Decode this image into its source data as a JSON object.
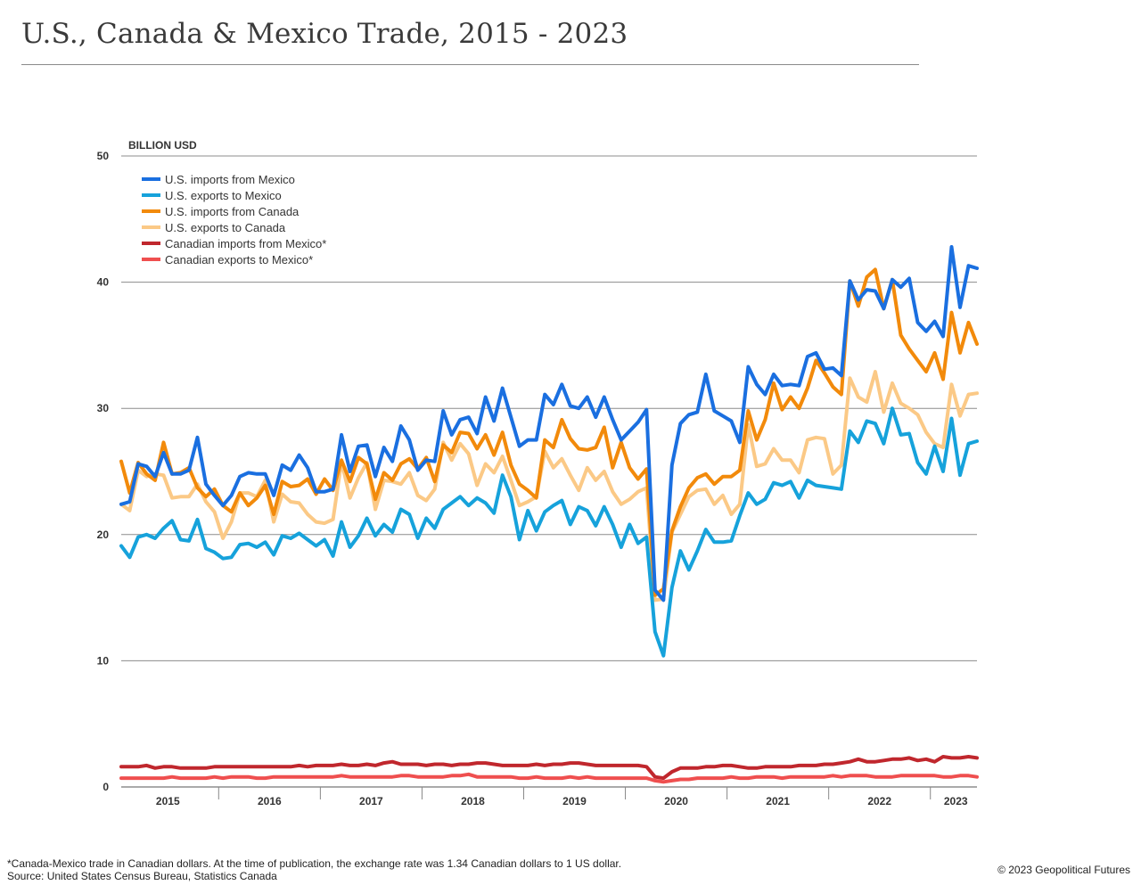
{
  "header": {
    "title": "U.S., Canada & Mexico Trade, 2015 - 2023"
  },
  "footer": {
    "footnote": "*Canada-Mexico trade in Canadian dollars. At the time of publication, the exchange rate was 1.34 Canadian dollars to 1 US dollar.",
    "source": "Source: United States Census Bureau, Statistics Canada",
    "copyright": "© 2023 Geopolitical Futures"
  },
  "chart_data": {
    "type": "line",
    "title": "U.S., Canada & Mexico Trade, 2015 - 2023",
    "ylabel": "BILLION USD",
    "xlabel": "",
    "ylim": [
      0,
      50
    ],
    "yticks": [
      0,
      10,
      20,
      30,
      40,
      50
    ],
    "x_start": "2015-01",
    "x_end": "2023-06",
    "year_labels": [
      "2015",
      "2016",
      "2017",
      "2018",
      "2019",
      "2020",
      "2021",
      "2022",
      "2023"
    ],
    "grid": true,
    "legend_position": "top-left",
    "series": [
      {
        "name": "U.S. imports from Mexico",
        "color": "#1a6fe0",
        "values": [
          22.4,
          22.6,
          25.6,
          25.4,
          24.6,
          26.5,
          24.8,
          24.8,
          25.1,
          27.7,
          24.0,
          23.1,
          22.3,
          23.1,
          24.6,
          24.9,
          24.8,
          24.8,
          23.1,
          25.5,
          25.1,
          26.3,
          25.3,
          23.4,
          23.4,
          23.6,
          27.9,
          25.0,
          27.0,
          27.1,
          24.6,
          26.9,
          25.8,
          28.6,
          27.5,
          25.1,
          25.9,
          25.8,
          29.8,
          27.9,
          29.1,
          29.3,
          28.0,
          30.9,
          29.0,
          31.6,
          29.3,
          27.0,
          27.5,
          27.5,
          31.1,
          30.3,
          31.9,
          30.2,
          30.0,
          30.9,
          29.3,
          30.9,
          29.1,
          27.5,
          28.2,
          28.9,
          29.9,
          15.6,
          14.8,
          25.5,
          28.8,
          29.5,
          29.7,
          32.7,
          29.8,
          29.4,
          29.0,
          27.3,
          33.3,
          31.9,
          31.1,
          32.7,
          31.8,
          31.9,
          31.8,
          34.1,
          34.4,
          33.1,
          33.2,
          32.6,
          40.1,
          38.6,
          39.4,
          39.3,
          37.9,
          40.2,
          39.6,
          40.3,
          36.8,
          36.1,
          36.9,
          35.7,
          42.8,
          38.0,
          41.3,
          41.1
        ]
      },
      {
        "name": "U.S. exports to Mexico",
        "color": "#16a2db",
        "values": [
          19.1,
          18.2,
          19.8,
          20.0,
          19.7,
          20.5,
          21.1,
          19.6,
          19.5,
          21.2,
          18.9,
          18.6,
          18.1,
          18.2,
          19.2,
          19.3,
          19.0,
          19.4,
          18.4,
          19.9,
          19.7,
          20.1,
          19.6,
          19.1,
          19.6,
          18.3,
          21.0,
          19.0,
          19.9,
          21.3,
          19.9,
          20.8,
          20.2,
          22.0,
          21.6,
          19.7,
          21.3,
          20.5,
          22.0,
          22.5,
          23.0,
          22.3,
          22.9,
          22.5,
          21.7,
          24.7,
          23.0,
          19.6,
          21.9,
          20.3,
          21.8,
          22.3,
          22.7,
          20.8,
          22.2,
          21.9,
          20.7,
          22.2,
          20.8,
          19.0,
          20.8,
          19.3,
          19.8,
          12.3,
          10.4,
          15.8,
          18.7,
          17.2,
          18.7,
          20.4,
          19.4,
          19.4,
          19.5,
          21.5,
          23.3,
          22.4,
          22.8,
          24.1,
          23.9,
          24.2,
          22.9,
          24.3,
          23.9,
          23.8,
          23.7,
          23.6,
          28.2,
          27.3,
          29.0,
          28.8,
          27.2,
          30.0,
          27.9,
          28.0,
          25.7,
          24.8,
          27.0,
          25.0,
          29.2,
          24.7,
          27.2,
          27.4
        ]
      },
      {
        "name": "U.S. imports from Canada",
        "color": "#f28a0b",
        "values": [
          25.8,
          23.3,
          25.7,
          24.8,
          24.3,
          27.3,
          24.8,
          24.9,
          25.3,
          23.7,
          23.0,
          23.6,
          22.3,
          21.8,
          23.3,
          22.3,
          22.9,
          23.9,
          21.6,
          24.2,
          23.8,
          23.9,
          24.4,
          23.2,
          24.4,
          23.5,
          25.9,
          24.2,
          26.1,
          25.6,
          22.8,
          24.9,
          24.3,
          25.6,
          26.0,
          25.2,
          26.1,
          24.2,
          27.1,
          26.5,
          28.1,
          28.0,
          26.8,
          27.9,
          26.3,
          28.1,
          25.5,
          24.0,
          23.5,
          22.9,
          27.5,
          26.9,
          29.1,
          27.6,
          26.8,
          26.7,
          26.9,
          28.5,
          25.3,
          27.3,
          25.3,
          24.4,
          25.2,
          15.2,
          15.7,
          20.3,
          22.2,
          23.7,
          24.5,
          24.8,
          24.0,
          24.6,
          24.6,
          25.1,
          29.8,
          27.5,
          29.1,
          32.0,
          29.9,
          30.9,
          30.0,
          31.6,
          33.8,
          32.8,
          31.7,
          31.1,
          40.1,
          38.1,
          40.4,
          41.0,
          37.9,
          40.2,
          35.8,
          34.7,
          33.8,
          32.9,
          34.4,
          32.3,
          37.6,
          34.4,
          36.8,
          35.1
        ]
      },
      {
        "name": "U.S. exports to Canada",
        "color": "#fbc986",
        "values": [
          22.4,
          21.9,
          25.1,
          24.6,
          24.8,
          24.7,
          22.9,
          23.0,
          23.0,
          24.0,
          22.6,
          21.8,
          19.7,
          21.0,
          23.3,
          23.3,
          23.0,
          24.3,
          21.0,
          23.2,
          22.6,
          22.5,
          21.6,
          21.0,
          20.9,
          21.2,
          25.8,
          22.9,
          24.5,
          25.7,
          22.0,
          24.3,
          24.2,
          24.0,
          24.9,
          23.1,
          22.7,
          23.6,
          27.3,
          25.9,
          27.2,
          26.4,
          23.9,
          25.6,
          24.9,
          26.2,
          24.3,
          22.3,
          22.6,
          23.0,
          26.6,
          25.3,
          26.0,
          24.7,
          23.5,
          25.3,
          24.3,
          25.0,
          23.4,
          22.4,
          22.8,
          23.4,
          23.7,
          14.8,
          14.9,
          20.2,
          21.6,
          23.0,
          23.5,
          23.6,
          22.4,
          23.1,
          21.6,
          22.4,
          28.7,
          25.4,
          25.6,
          26.8,
          25.9,
          25.9,
          24.9,
          27.5,
          27.7,
          27.6,
          24.8,
          25.5,
          32.4,
          30.9,
          30.5,
          32.9,
          29.7,
          32.0,
          30.4,
          30.0,
          29.5,
          28.1,
          27.2,
          26.9,
          31.9,
          29.4,
          31.1,
          31.2
        ]
      },
      {
        "name": "Canadian imports from Mexico*",
        "color": "#c0272d",
        "values": [
          1.6,
          1.6,
          1.6,
          1.7,
          1.5,
          1.6,
          1.6,
          1.5,
          1.5,
          1.5,
          1.5,
          1.6,
          1.6,
          1.6,
          1.6,
          1.6,
          1.6,
          1.6,
          1.6,
          1.6,
          1.6,
          1.7,
          1.6,
          1.7,
          1.7,
          1.7,
          1.8,
          1.7,
          1.7,
          1.8,
          1.7,
          1.9,
          2.0,
          1.8,
          1.8,
          1.8,
          1.7,
          1.8,
          1.8,
          1.7,
          1.8,
          1.8,
          1.9,
          1.9,
          1.8,
          1.7,
          1.7,
          1.7,
          1.7,
          1.8,
          1.7,
          1.8,
          1.8,
          1.9,
          1.9,
          1.8,
          1.7,
          1.7,
          1.7,
          1.7,
          1.7,
          1.7,
          1.6,
          0.8,
          0.7,
          1.2,
          1.5,
          1.5,
          1.5,
          1.6,
          1.6,
          1.7,
          1.7,
          1.6,
          1.5,
          1.5,
          1.6,
          1.6,
          1.6,
          1.6,
          1.7,
          1.7,
          1.7,
          1.8,
          1.8,
          1.9,
          2.0,
          2.2,
          2.0,
          2.0,
          2.1,
          2.2,
          2.2,
          2.3,
          2.1,
          2.2,
          2.0,
          2.4,
          2.3,
          2.3,
          2.4,
          2.3
        ]
      },
      {
        "name": "Canadian exports to Mexico*",
        "color": "#ef4f4f",
        "values": [
          0.7,
          0.7,
          0.7,
          0.7,
          0.7,
          0.7,
          0.8,
          0.7,
          0.7,
          0.7,
          0.7,
          0.8,
          0.7,
          0.8,
          0.8,
          0.8,
          0.7,
          0.7,
          0.8,
          0.8,
          0.8,
          0.8,
          0.8,
          0.8,
          0.8,
          0.8,
          0.9,
          0.8,
          0.8,
          0.8,
          0.8,
          0.8,
          0.8,
          0.9,
          0.9,
          0.8,
          0.8,
          0.8,
          0.8,
          0.9,
          0.9,
          1.0,
          0.8,
          0.8,
          0.8,
          0.8,
          0.8,
          0.7,
          0.7,
          0.8,
          0.7,
          0.7,
          0.7,
          0.8,
          0.7,
          0.8,
          0.7,
          0.7,
          0.7,
          0.7,
          0.7,
          0.7,
          0.7,
          0.5,
          0.4,
          0.5,
          0.6,
          0.6,
          0.7,
          0.7,
          0.7,
          0.7,
          0.8,
          0.7,
          0.7,
          0.8,
          0.8,
          0.8,
          0.7,
          0.8,
          0.8,
          0.8,
          0.8,
          0.8,
          0.9,
          0.8,
          0.9,
          0.9,
          0.9,
          0.8,
          0.8,
          0.8,
          0.9,
          0.9,
          0.9,
          0.9,
          0.9,
          0.8,
          0.8,
          0.9,
          0.9,
          0.8
        ]
      }
    ]
  }
}
